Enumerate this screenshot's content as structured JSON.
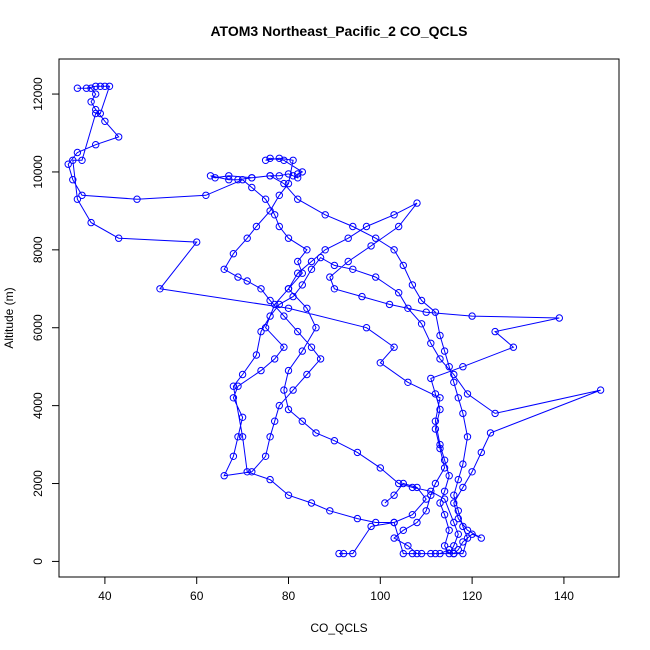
{
  "chart_data": {
    "type": "line",
    "title": "ATOM3 Northeast_Pacific_2 CO_QCLS",
    "xlabel": "CO_QCLS",
    "ylabel": "Altitude (m)",
    "xlim": [
      30,
      152
    ],
    "ylim": [
      -400,
      12900
    ],
    "xticks": [
      40,
      60,
      80,
      100,
      120,
      140
    ],
    "yticks": [
      0,
      2000,
      4000,
      6000,
      8000,
      10000,
      12000
    ],
    "grid": false,
    "color": "#0000ff",
    "marker": "open-circle",
    "series": [
      {
        "points": [
          [
            91,
            200
          ],
          [
            92,
            200
          ],
          [
            94,
            200
          ],
          [
            98,
            900
          ],
          [
            103,
            1000
          ],
          [
            105,
            200
          ],
          [
            107,
            200
          ],
          [
            109,
            200
          ],
          [
            111,
            200
          ],
          [
            113,
            200
          ],
          [
            115,
            300
          ],
          [
            116,
            200
          ],
          [
            118,
            200
          ],
          [
            119,
            600
          ],
          [
            118,
            900
          ],
          [
            117,
            1300
          ],
          [
            116,
            1700
          ],
          [
            117,
            2100
          ],
          [
            118,
            2500
          ],
          [
            119,
            3200
          ],
          [
            118,
            3800
          ],
          [
            117,
            4200
          ],
          [
            116,
            4600
          ],
          [
            115,
            5000
          ],
          [
            114,
            5400
          ],
          [
            113,
            5800
          ],
          [
            112,
            6400
          ],
          [
            109,
            6700
          ],
          [
            107,
            7100
          ],
          [
            105,
            7600
          ],
          [
            103,
            8000
          ],
          [
            99,
            8300
          ],
          [
            94,
            8600
          ],
          [
            88,
            8900
          ],
          [
            82,
            9300
          ],
          [
            79,
            9700
          ],
          [
            76,
            9900
          ],
          [
            72,
            9850
          ],
          [
            67,
            9900
          ],
          [
            64,
            9850
          ],
          [
            63,
            9900
          ],
          [
            67,
            9800
          ],
          [
            69,
            9800
          ],
          [
            72,
            9850
          ],
          [
            76,
            9900
          ],
          [
            78,
            9900
          ],
          [
            80,
            9950
          ],
          [
            81,
            9900
          ],
          [
            82,
            9850
          ],
          [
            82,
            9950
          ],
          [
            83,
            10000
          ],
          [
            79,
            10300
          ],
          [
            76,
            10350
          ],
          [
            75,
            10300
          ],
          [
            78,
            10350
          ],
          [
            81,
            10300
          ],
          [
            80,
            9700
          ],
          [
            78,
            9400
          ],
          [
            76,
            9000
          ],
          [
            73,
            8600
          ],
          [
            71,
            8300
          ],
          [
            68,
            7900
          ],
          [
            66,
            7500
          ],
          [
            69,
            7300
          ],
          [
            71,
            7200
          ],
          [
            74,
            7000
          ],
          [
            76,
            6700
          ],
          [
            79,
            6300
          ],
          [
            82,
            5900
          ],
          [
            85,
            5500
          ],
          [
            87,
            5200
          ],
          [
            84,
            4800
          ],
          [
            81,
            4400
          ],
          [
            78,
            4000
          ],
          [
            77,
            3600
          ],
          [
            76,
            3200
          ],
          [
            75,
            2700
          ],
          [
            72,
            2300
          ],
          [
            66,
            2200
          ],
          [
            68,
            2700
          ],
          [
            69,
            3200
          ],
          [
            70,
            3700
          ],
          [
            68,
            4200
          ],
          [
            69,
            4500
          ],
          [
            74,
            4900
          ],
          [
            77,
            5200
          ],
          [
            79,
            5500
          ],
          [
            75,
            6000
          ],
          [
            77,
            6600
          ],
          [
            80,
            7000
          ],
          [
            83,
            7400
          ],
          [
            82,
            7700
          ],
          [
            84,
            8000
          ],
          [
            80,
            8300
          ],
          [
            78,
            8600
          ],
          [
            77,
            8900
          ],
          [
            75,
            9300
          ],
          [
            72,
            9600
          ],
          [
            70,
            9800
          ],
          [
            62,
            9400
          ],
          [
            47,
            9300
          ],
          [
            35,
            9400
          ],
          [
            33,
            9800
          ],
          [
            32,
            10200
          ],
          [
            34,
            10500
          ],
          [
            38,
            10700
          ],
          [
            43,
            10900
          ],
          [
            40,
            11300
          ],
          [
            38,
            11600
          ],
          [
            37,
            11800
          ],
          [
            38,
            12000
          ],
          [
            37,
            12150
          ],
          [
            34,
            12150
          ],
          [
            36,
            12150
          ],
          [
            38,
            12200
          ],
          [
            39,
            12200
          ],
          [
            40,
            12200
          ],
          [
            41,
            12200
          ],
          [
            39,
            11500
          ],
          [
            38,
            11500
          ],
          [
            35,
            10300
          ],
          [
            33,
            10300
          ],
          [
            34,
            9300
          ],
          [
            37,
            8700
          ],
          [
            43,
            8300
          ],
          [
            60,
            8200
          ],
          [
            52,
            7000
          ],
          [
            80,
            6500
          ],
          [
            97,
            6000
          ],
          [
            103,
            5500
          ],
          [
            100,
            5100
          ],
          [
            106,
            4600
          ],
          [
            113,
            4200
          ],
          [
            112,
            3600
          ],
          [
            113,
            3000
          ],
          [
            114,
            2600
          ],
          [
            115,
            2200
          ],
          [
            114,
            1800
          ],
          [
            113,
            1500
          ],
          [
            114,
            1200
          ],
          [
            115,
            800
          ],
          [
            114,
            400
          ],
          [
            115,
            200
          ],
          [
            116,
            400
          ],
          [
            117,
            700
          ],
          [
            116,
            1000
          ],
          [
            114,
            1600
          ],
          [
            111,
            1800
          ],
          [
            107,
            1900
          ],
          [
            104,
            2000
          ],
          [
            100,
            2400
          ],
          [
            95,
            2800
          ],
          [
            90,
            3100
          ],
          [
            86,
            3300
          ],
          [
            83,
            3600
          ],
          [
            80,
            3900
          ],
          [
            79,
            4400
          ],
          [
            80,
            4900
          ],
          [
            83,
            5400
          ],
          [
            86,
            6000
          ],
          [
            84,
            6500
          ],
          [
            80,
            7000
          ],
          [
            82,
            7400
          ],
          [
            85,
            7700
          ],
          [
            88,
            8000
          ],
          [
            93,
            8300
          ],
          [
            97,
            8600
          ],
          [
            103,
            8900
          ],
          [
            108,
            9200
          ],
          [
            104,
            8600
          ],
          [
            98,
            8100
          ],
          [
            93,
            7700
          ],
          [
            89,
            7300
          ],
          [
            90,
            7000
          ],
          [
            96,
            6800
          ],
          [
            102,
            6600
          ],
          [
            110,
            6400
          ],
          [
            120,
            6300
          ],
          [
            139,
            6250
          ],
          [
            125,
            5900
          ],
          [
            129,
            5500
          ],
          [
            118,
            5000
          ],
          [
            111,
            4700
          ],
          [
            112,
            4300
          ],
          [
            113,
            3900
          ],
          [
            112,
            3400
          ],
          [
            113,
            2900
          ],
          [
            114,
            2400
          ],
          [
            112,
            2000
          ],
          [
            111,
            1700
          ],
          [
            110,
            1300
          ],
          [
            108,
            1000
          ],
          [
            105,
            800
          ],
          [
            103,
            600
          ],
          [
            106,
            400
          ],
          [
            108,
            200
          ],
          [
            112,
            200
          ],
          [
            116,
            200
          ],
          [
            117,
            300
          ],
          [
            118,
            500
          ],
          [
            120,
            700
          ],
          [
            122,
            600
          ],
          [
            119,
            800
          ],
          [
            117,
            1100
          ],
          [
            116,
            1500
          ],
          [
            118,
            1900
          ],
          [
            120,
            2300
          ],
          [
            122,
            2800
          ],
          [
            124,
            3300
          ],
          [
            148,
            4400
          ],
          [
            125,
            3800
          ],
          [
            119,
            4300
          ],
          [
            116,
            4800
          ],
          [
            113,
            5200
          ],
          [
            111,
            5600
          ],
          [
            109,
            6100
          ],
          [
            106,
            6500
          ],
          [
            104,
            6900
          ],
          [
            99,
            7300
          ],
          [
            94,
            7500
          ],
          [
            90,
            7600
          ],
          [
            87,
            7800
          ],
          [
            85,
            7500
          ],
          [
            83,
            7100
          ],
          [
            81,
            6800
          ],
          [
            78,
            6600
          ],
          [
            76,
            6300
          ],
          [
            74,
            5900
          ],
          [
            73,
            5300
          ],
          [
            70,
            4800
          ],
          [
            68,
            4500
          ],
          [
            70,
            3200
          ],
          [
            71,
            2300
          ],
          [
            76,
            2100
          ],
          [
            80,
            1700
          ],
          [
            85,
            1500
          ],
          [
            89,
            1300
          ],
          [
            95,
            1100
          ],
          [
            99,
            1000
          ],
          [
            103,
            1000
          ],
          [
            107,
            1200
          ],
          [
            110,
            1600
          ],
          [
            108,
            1900
          ],
          [
            105,
            2000
          ],
          [
            103,
            1700
          ],
          [
            101,
            1500
          ]
        ]
      }
    ]
  }
}
